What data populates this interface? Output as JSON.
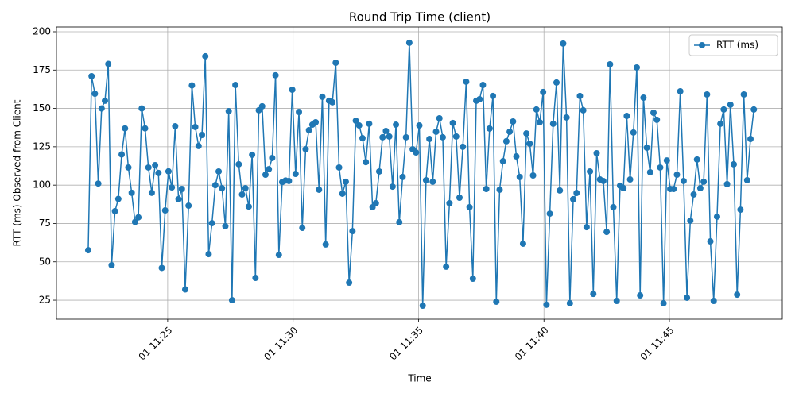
{
  "chart_data": {
    "type": "line",
    "title": "Round Trip Time (client)",
    "xlabel": "Time",
    "ylabel": "RTT (ms) Observed from Client",
    "x": [
      1310,
      1318,
      1326,
      1334,
      1342,
      1350,
      1358,
      1366,
      1374,
      1382,
      1390,
      1398,
      1406,
      1414,
      1422,
      1430,
      1438,
      1446,
      1454,
      1462,
      1470,
      1478,
      1486,
      1494,
      1502,
      1510,
      1518,
      1526,
      1534,
      1542,
      1550,
      1558,
      1566,
      1574,
      1582,
      1590,
      1598,
      1606,
      1614,
      1622,
      1630,
      1638,
      1646,
      1654,
      1662,
      1670,
      1678,
      1686,
      1694,
      1702,
      1710,
      1718,
      1726,
      1734,
      1742,
      1750,
      1758,
      1766,
      1774,
      1782,
      1790,
      1798,
      1806,
      1814,
      1822,
      1830,
      1838,
      1846,
      1854,
      1862,
      1870,
      1878,
      1886,
      1894,
      1902,
      1910,
      1918,
      1926,
      1934,
      1942,
      1950,
      1958,
      1966,
      1974,
      1982,
      1990,
      1998,
      2006,
      2014,
      2022,
      2030,
      2038,
      2046,
      2054,
      2062,
      2070,
      2078,
      2086,
      2094,
      2102,
      2110,
      2118,
      2126,
      2134,
      2142,
      2150,
      2158,
      2166,
      2174,
      2182,
      2190,
      2198,
      2206,
      2214,
      2222,
      2230,
      2238,
      2246,
      2254,
      2262,
      2270,
      2278,
      2286,
      2294,
      2302,
      2310,
      2318,
      2326,
      2334,
      2342,
      2350,
      2358,
      2366,
      2374,
      2382,
      2390,
      2398,
      2406,
      2414,
      2422,
      2430,
      2438,
      2446,
      2454,
      2462,
      2470,
      2478,
      2486,
      2494,
      2502,
      2510,
      2518,
      2526,
      2534,
      2542,
      2550,
      2558,
      2566,
      2574,
      2582,
      2590,
      2598,
      2606,
      2614,
      2622,
      2630,
      2638,
      2646,
      2654,
      2662,
      2670,
      2678,
      2686,
      2694,
      2702,
      2710,
      2718,
      2726,
      2734,
      2742,
      2750,
      2758,
      2766,
      2774,
      2782,
      2790,
      2798,
      2806,
      2814,
      2822,
      2830,
      2838,
      2846,
      2854,
      2862,
      2870,
      2878,
      2886,
      2894,
      2902
    ],
    "series": [
      {
        "name": "RTT (ms)",
        "color": "#1f77b4",
        "marker": "o",
        "values": [
          57.6,
          171,
          159.6,
          101,
          150,
          155,
          179,
          47.8,
          83,
          91,
          120,
          137,
          111.5,
          95,
          76,
          79,
          150,
          137,
          111.5,
          95,
          113,
          107.9,
          46,
          83.5,
          109,
          98.5,
          138.4,
          90.8,
          97.5,
          32,
          86.6,
          165,
          137.9,
          125.5,
          132.7,
          184,
          55,
          75.2,
          100,
          108.9,
          98,
          73.2,
          148.2,
          25,
          165.3,
          113.6,
          93.9,
          98,
          86,
          119.8,
          39.5,
          148.8,
          151.4,
          106.8,
          110.4,
          117.7,
          171.6,
          54.5,
          102,
          103,
          102.7,
          162.2,
          107.3,
          147.7,
          72.1,
          123.4,
          135.8,
          139.4,
          141,
          97,
          157.6,
          61.3,
          155,
          154,
          179.8,
          111.5,
          94.4,
          102.2,
          36.4,
          70,
          142,
          138.9,
          130.6,
          115,
          140,
          85.6,
          88.2,
          108.9,
          131.2,
          135.3,
          131.7,
          99,
          139.4,
          75.8,
          105.3,
          131.2,
          192.8,
          123.4,
          121.3,
          138.9,
          21.4,
          103.2,
          130.1,
          102.2,
          134.8,
          143.6,
          131.2,
          46.8,
          88.2,
          140.5,
          131.7,
          91.8,
          125,
          167.4,
          85.6,
          39,
          155,
          156,
          165.3,
          97.5,
          136.9,
          158.1,
          24,
          97,
          115.6,
          128.6,
          134.8,
          141.5,
          118.7,
          105.3,
          61.8,
          133.7,
          127,
          106.3,
          149.3,
          141,
          160.7,
          22,
          81.4,
          140,
          166.9,
          96.5,
          192.3,
          144.1,
          23,
          90.8,
          94.9,
          158.1,
          148.8,
          72.6,
          108.9,
          29.1,
          120.8,
          103.7,
          102.7,
          69.5,
          178.8,
          85.6,
          24.5,
          99.6,
          98,
          145.1,
          103.7,
          134.3,
          176.7,
          28.1,
          157,
          124.4,
          108.4,
          147.2,
          142.6,
          111.5,
          23,
          116.1,
          97.5,
          97.5,
          106.8,
          161.2,
          102.7,
          26.6,
          76.8,
          93.9,
          116.7,
          98,
          102.2,
          159.1,
          63.3,
          24.5,
          79.4,
          140,
          149.3,
          100.6,
          152.4,
          113.6,
          28.6,
          84,
          159.1,
          103.2,
          130.1,
          149.3
        ]
      }
    ],
    "xlim": [
      1234,
      2970
    ],
    "xticks": [
      {
        "value": 1500,
        "label": "01 11:25"
      },
      {
        "value": 1800,
        "label": "01 11:30"
      },
      {
        "value": 2100,
        "label": "01 11:35"
      },
      {
        "value": 2400,
        "label": "01 11:40"
      },
      {
        "value": 2700,
        "label": "01 11:45"
      }
    ],
    "ylim": [
      12.6,
      203.1
    ],
    "yticks": [
      25,
      50,
      75,
      100,
      125,
      150,
      175,
      200
    ],
    "grid": true,
    "legend": "upper right"
  }
}
